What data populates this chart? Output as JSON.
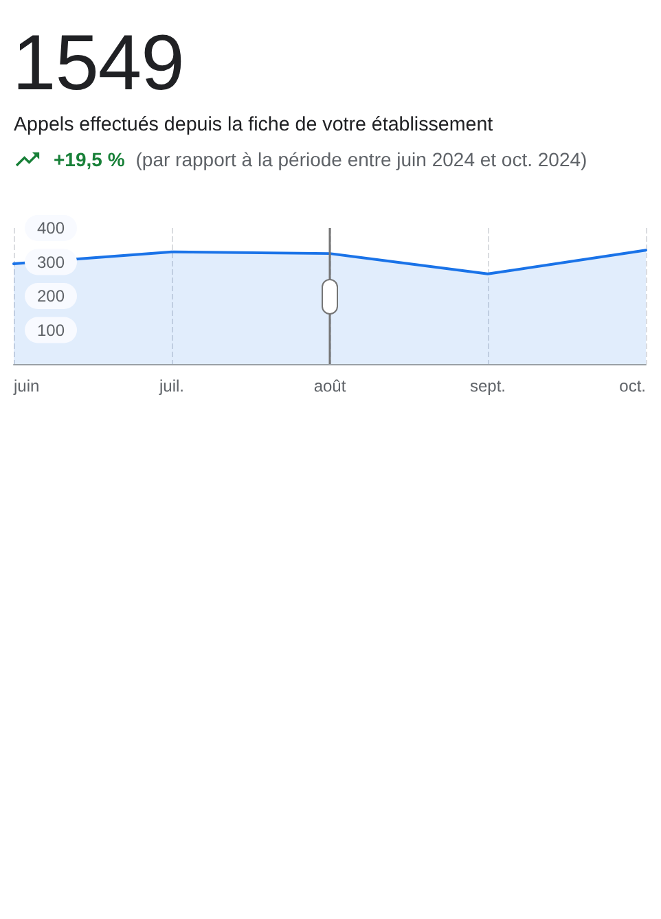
{
  "chart_data": {
    "type": "area",
    "title": "1549",
    "subtitle": "Appels effectués depuis la fiche de votre établissement",
    "annotations": [
      "+19,5 %",
      "(par rapport à la période entre juin 2024 et oct. 2024)"
    ],
    "categories": [
      "juin",
      "juil.",
      "août",
      "sept.",
      "oct."
    ],
    "series": [
      {
        "color": "#1a73e8",
        "values": [
          295,
          330,
          325,
          265,
          335
        ]
      }
    ],
    "ylim": [
      0,
      400
    ],
    "yticks": [
      100,
      200,
      300,
      400
    ],
    "grid": "x",
    "marker": "none",
    "ref_lines": [
      {
        "axis": "x",
        "value": "août",
        "color": "#757575"
      }
    ]
  }
}
